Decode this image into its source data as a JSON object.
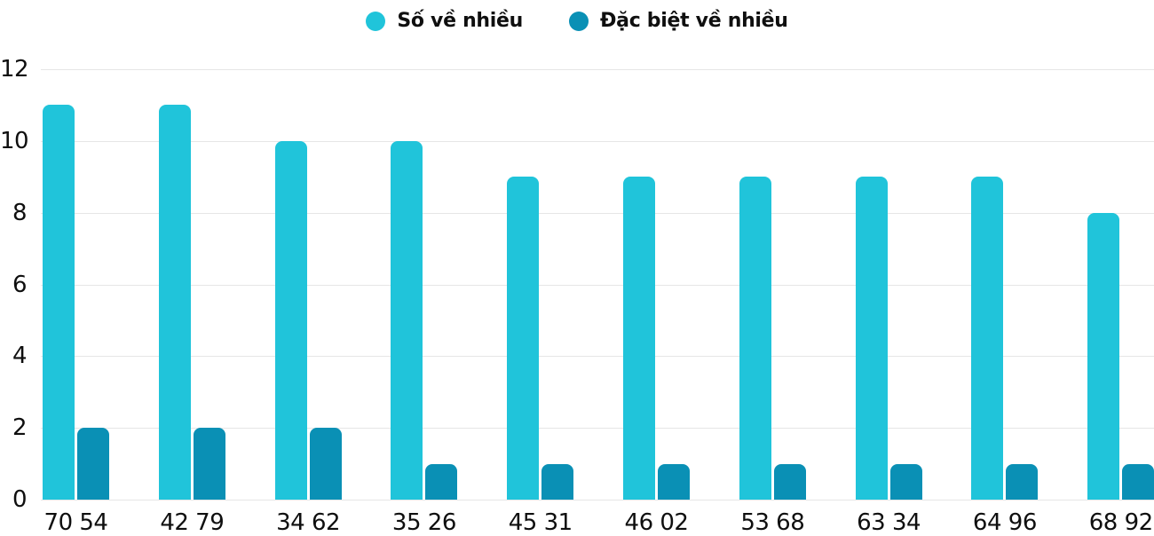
{
  "legend": {
    "items": [
      {
        "label": "Số về nhiều",
        "color": "#20C4DA"
      },
      {
        "label": "Đặc biệt về nhiều",
        "color": "#0A90B5"
      }
    ]
  },
  "chart_data": {
    "type": "bar",
    "categories": [
      "70 54",
      "42 79",
      "34 62",
      "35 26",
      "45 31",
      "46 02",
      "53 68",
      "63 34",
      "64 96",
      "68 92"
    ],
    "series": [
      {
        "name": "Số về nhiều",
        "color": "#20C4DA",
        "values": [
          11,
          11,
          10,
          10,
          9,
          9,
          9,
          9,
          9,
          8
        ]
      },
      {
        "name": "Đặc biệt về nhiều",
        "color": "#0A90B5",
        "values": [
          2,
          2,
          2,
          1,
          1,
          1,
          1,
          1,
          1,
          1
        ]
      }
    ],
    "title": "",
    "xlabel": "",
    "ylabel": "",
    "ylim": [
      0,
      12
    ],
    "yticks": [
      0,
      2,
      4,
      6,
      8,
      10,
      12
    ],
    "grid": true,
    "legend_position": "top-center",
    "colors": {
      "grid_line": "#e6e6e6",
      "text": "#0f0f0f",
      "background": "#ffffff"
    }
  }
}
